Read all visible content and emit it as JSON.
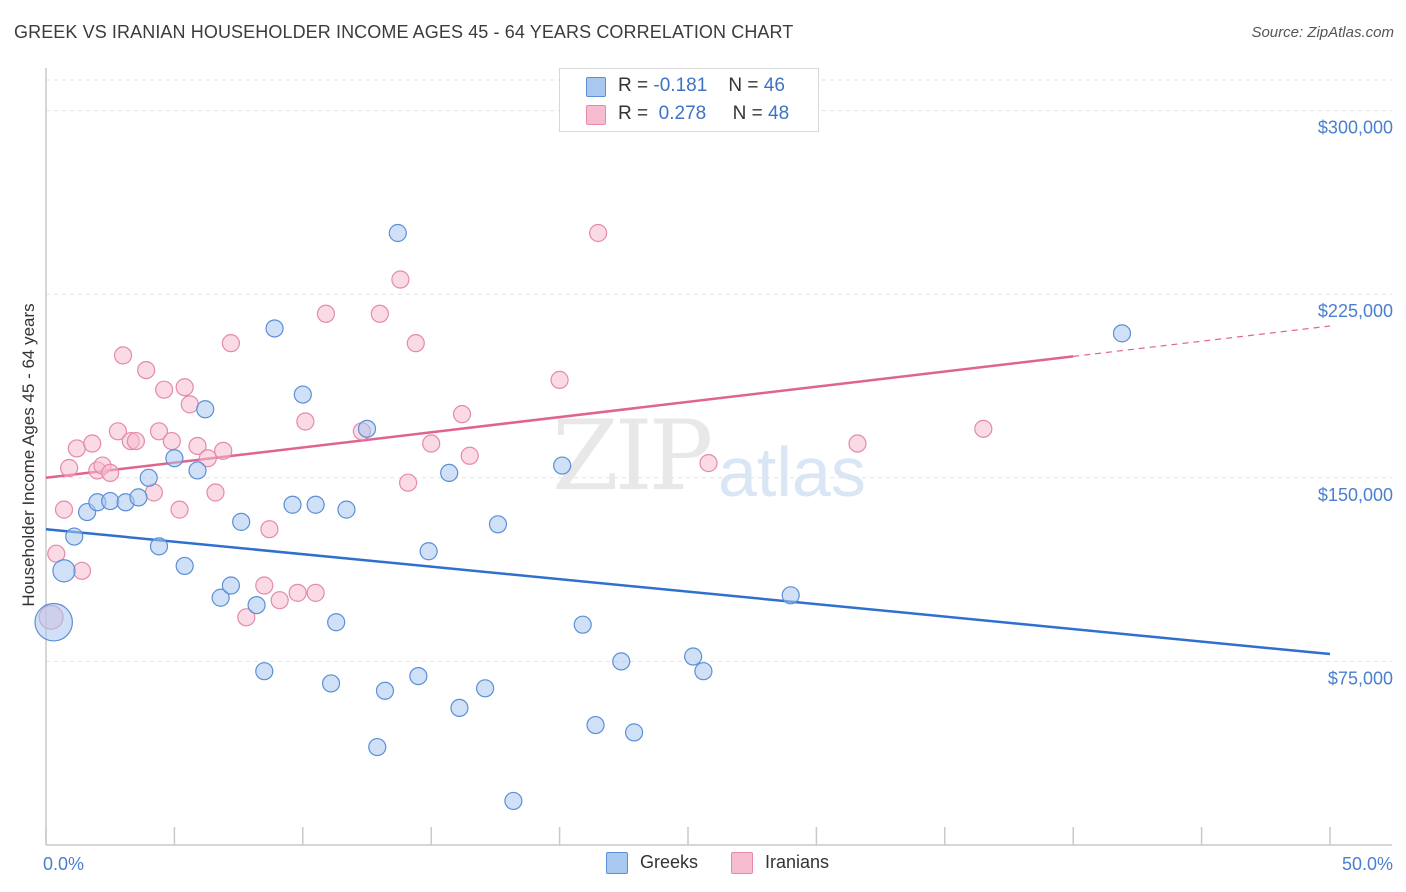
{
  "title": "GREEK VS IRANIAN HOUSEHOLDER INCOME AGES 45 - 64 YEARS CORRELATION CHART",
  "source": "Source: ZipAtlas.com",
  "watermark": {
    "zip": "ZIP",
    "atlas": "atlas"
  },
  "colors": {
    "greek_fill": "#a9c8f0",
    "greek_stroke": "#5b8fd6",
    "greek_line": "#2f6fcd",
    "iranian_fill": "#f6bcd0",
    "iranian_stroke": "#e58aa8",
    "iranian_line": "#e0648e",
    "axis_text": "#4a7fd0"
  },
  "legend": {
    "greek": {
      "r_label": "R =",
      "r_value": "-0.181",
      "n_label": "N =",
      "n_value": "46"
    },
    "iranian": {
      "r_label": "R =",
      "r_value": "0.278",
      "n_label": "N =",
      "n_value": "48"
    }
  },
  "bottom_legend": {
    "greeks": "Greeks",
    "iranians": "Iranians"
  },
  "chart_data": {
    "type": "scatter",
    "title": "GREEK VS IRANIAN HOUSEHOLDER INCOME AGES 45 - 64 YEARS CORRELATION CHART",
    "xlabel": "",
    "ylabel": "Householder Income Ages 45 - 64 years",
    "xlim": [
      0,
      50
    ],
    "ylim": [
      0,
      312500
    ],
    "x_tick_labels": {
      "left": "0.0%",
      "right": "50.0%"
    },
    "y_ticks": [
      {
        "value": 75000,
        "label": "$75,000"
      },
      {
        "value": 150000,
        "label": "$150,000"
      },
      {
        "value": 225000,
        "label": "$225,000"
      },
      {
        "value": 300000,
        "label": "$300,000"
      }
    ],
    "series": [
      {
        "name": "Greeks",
        "r": -0.181,
        "n": 46,
        "trend": {
          "x0": 0,
          "y0": 129000,
          "x1": 50,
          "y1": 78000,
          "dashed_from": null
        },
        "points": [
          [
            0.3,
            91000,
            2.2
          ],
          [
            0.7,
            112000,
            1.3
          ],
          [
            1.1,
            126000,
            1
          ],
          [
            1.6,
            136000,
            1
          ],
          [
            2.0,
            140000,
            1
          ],
          [
            2.5,
            140500,
            1
          ],
          [
            3.1,
            140000,
            1
          ],
          [
            3.6,
            142000,
            1
          ],
          [
            4.0,
            150000,
            1
          ],
          [
            4.4,
            122000,
            1
          ],
          [
            5.0,
            158000,
            1
          ],
          [
            5.4,
            114000,
            1
          ],
          [
            5.9,
            153000,
            1
          ],
          [
            6.2,
            178000,
            1
          ],
          [
            6.8,
            101000,
            1
          ],
          [
            7.2,
            106000,
            1
          ],
          [
            7.6,
            132000,
            1
          ],
          [
            8.2,
            98000,
            1
          ],
          [
            8.5,
            71000,
            1
          ],
          [
            8.9,
            211000,
            1
          ],
          [
            9.6,
            139000,
            1
          ],
          [
            10.0,
            184000,
            1
          ],
          [
            10.5,
            139000,
            1
          ],
          [
            11.1,
            66000,
            1
          ],
          [
            11.3,
            91000,
            1
          ],
          [
            11.7,
            137000,
            1
          ],
          [
            12.5,
            170000,
            1
          ],
          [
            12.9,
            40000,
            1
          ],
          [
            13.2,
            63000,
            1
          ],
          [
            13.7,
            250000,
            1
          ],
          [
            14.5,
            69000,
            1
          ],
          [
            14.9,
            120000,
            1
          ],
          [
            15.7,
            152000,
            1
          ],
          [
            16.1,
            56000,
            1
          ],
          [
            17.1,
            64000,
            1
          ],
          [
            17.6,
            131000,
            1
          ],
          [
            18.2,
            18000,
            1
          ],
          [
            20.1,
            155000,
            1
          ],
          [
            20.9,
            90000,
            1
          ],
          [
            21.4,
            49000,
            1
          ],
          [
            22.4,
            75000,
            1
          ],
          [
            22.9,
            46000,
            1
          ],
          [
            25.2,
            77000,
            1
          ],
          [
            25.6,
            71000,
            1
          ],
          [
            29.0,
            102000,
            1
          ],
          [
            41.9,
            209000,
            1
          ]
        ]
      },
      {
        "name": "Iranians",
        "r": 0.278,
        "n": 48,
        "trend": {
          "x0": 0,
          "y0": 150000,
          "x1": 50,
          "y1": 212000,
          "dashed_from": 40
        },
        "points": [
          [
            0.2,
            93000,
            1.4
          ],
          [
            0.4,
            119000,
            1
          ],
          [
            0.7,
            137000,
            1
          ],
          [
            0.9,
            154000,
            1
          ],
          [
            1.2,
            162000,
            1
          ],
          [
            1.4,
            112000,
            1
          ],
          [
            1.8,
            164000,
            1
          ],
          [
            2.0,
            153000,
            1
          ],
          [
            2.2,
            155000,
            1
          ],
          [
            2.5,
            152000,
            1
          ],
          [
            2.8,
            169000,
            1
          ],
          [
            3.0,
            200000,
            1
          ],
          [
            3.3,
            165000,
            1
          ],
          [
            3.5,
            165000,
            1
          ],
          [
            3.9,
            194000,
            1
          ],
          [
            4.2,
            144000,
            1
          ],
          [
            4.4,
            169000,
            1
          ],
          [
            4.6,
            186000,
            1
          ],
          [
            4.9,
            165000,
            1
          ],
          [
            5.2,
            137000,
            1
          ],
          [
            5.4,
            187000,
            1
          ],
          [
            5.6,
            180000,
            1
          ],
          [
            5.9,
            163000,
            1
          ],
          [
            6.3,
            158000,
            1
          ],
          [
            6.6,
            144000,
            1
          ],
          [
            6.9,
            161000,
            1
          ],
          [
            7.2,
            205000,
            1
          ],
          [
            7.8,
            93000,
            1
          ],
          [
            8.5,
            106000,
            1
          ],
          [
            8.7,
            129000,
            1
          ],
          [
            9.1,
            100000,
            1
          ],
          [
            9.8,
            103000,
            1
          ],
          [
            10.1,
            173000,
            1
          ],
          [
            10.5,
            103000,
            1
          ],
          [
            10.9,
            217000,
            1
          ],
          [
            12.3,
            169000,
            1
          ],
          [
            13.0,
            217000,
            1
          ],
          [
            13.8,
            231000,
            1
          ],
          [
            14.1,
            148000,
            1
          ],
          [
            14.4,
            205000,
            1
          ],
          [
            15.0,
            164000,
            1
          ],
          [
            16.2,
            176000,
            1
          ],
          [
            16.5,
            159000,
            1
          ],
          [
            20.0,
            190000,
            1
          ],
          [
            21.5,
            250000,
            1
          ],
          [
            25.8,
            156000,
            1
          ],
          [
            31.6,
            164000,
            1
          ],
          [
            36.5,
            170000,
            1
          ]
        ]
      }
    ]
  }
}
